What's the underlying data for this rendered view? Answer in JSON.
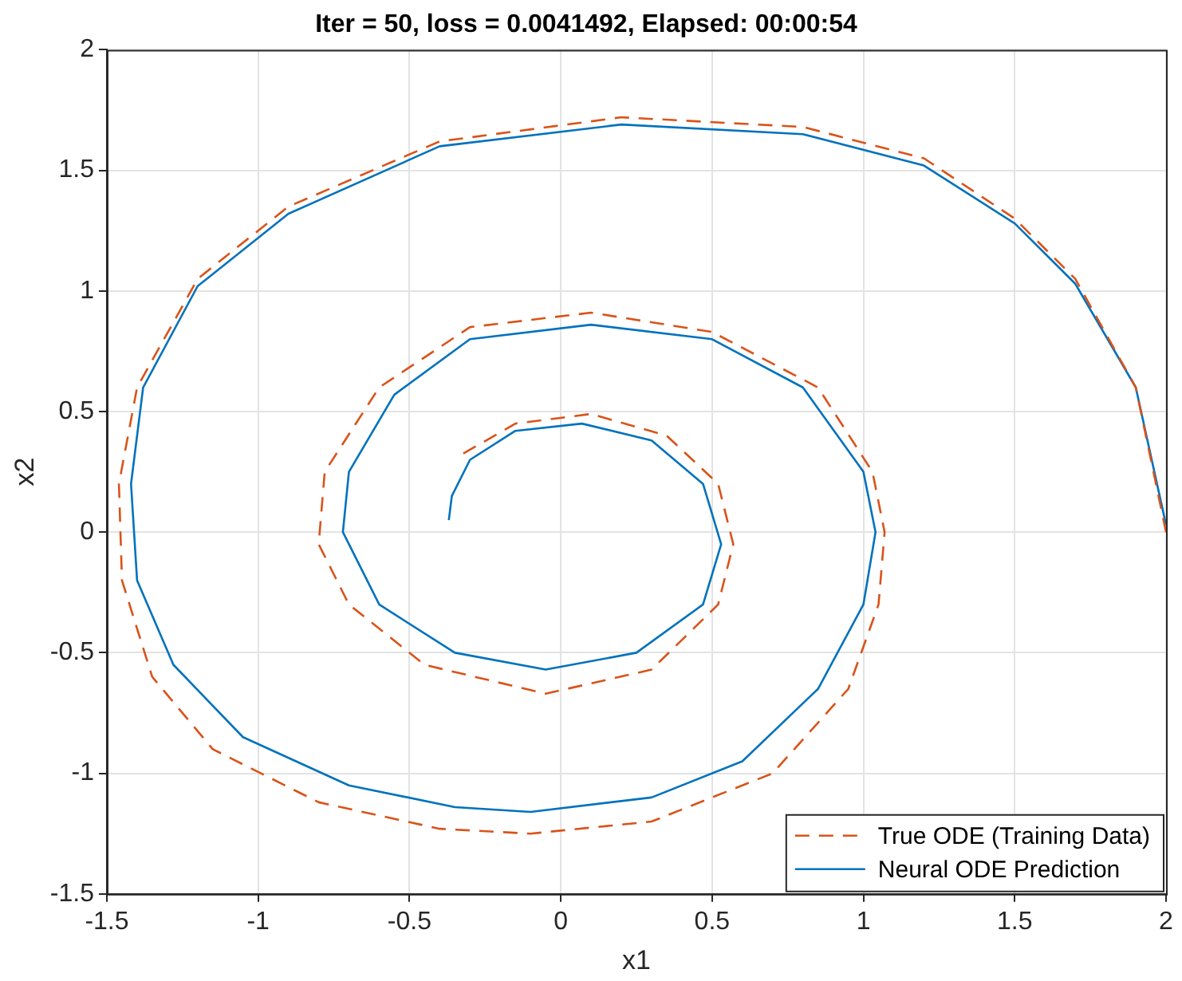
{
  "chart_data": {
    "type": "line",
    "title": "Iter = 50, loss = 0.0041492, Elapsed: 00:00:54",
    "xlabel": "x1",
    "ylabel": "x2",
    "xlim": [
      -1.5,
      2
    ],
    "xticks": [
      -1.5,
      -1,
      -0.5,
      0,
      0.5,
      1,
      1.5,
      2
    ],
    "ylim": [
      -1.5,
      2
    ],
    "yticks": [
      -1.5,
      -1,
      -0.5,
      0,
      0.5,
      1,
      1.5,
      2
    ],
    "grid": true,
    "legend": "bottom right",
    "marker": "none",
    "series": [
      {
        "name": "True ODE (Training Data)",
        "color": "#d95319",
        "line_style": "dashed",
        "x": [
          2,
          1.9,
          1.7,
          1.5,
          1.2,
          0.8,
          0.2,
          -0.4,
          -0.9,
          -1.2,
          -1.4,
          -1.46,
          -1.45,
          -1.35,
          -1.15,
          -0.8,
          -0.4,
          -0.1,
          0.3,
          0.7,
          0.95,
          1.05,
          1.07,
          1.03,
          0.85,
          0.5,
          0.1,
          -0.3,
          -0.6,
          -0.78,
          -0.8,
          -0.7,
          -0.45,
          -0.05,
          0.3,
          0.52,
          0.57,
          0.52,
          0.35,
          0.1,
          -0.15,
          -0.33
        ],
        "values": [
          0,
          0.6,
          1.05,
          1.3,
          1.55,
          1.68,
          1.72,
          1.62,
          1.35,
          1.05,
          0.6,
          0.2,
          -0.2,
          -0.6,
          -0.9,
          -1.12,
          -1.23,
          -1.25,
          -1.2,
          -1,
          -0.65,
          -0.3,
          0,
          0.25,
          0.6,
          0.83,
          0.91,
          0.85,
          0.6,
          0.25,
          -0.05,
          -0.3,
          -0.55,
          -0.67,
          -0.57,
          -0.3,
          -0.05,
          0.2,
          0.4,
          0.49,
          0.45,
          0.32
        ]
      },
      {
        "name": "Neural ODE Prediction",
        "color": "#0072bd",
        "line_style": "solid",
        "x": [
          2,
          1.9,
          1.7,
          1.5,
          1.2,
          0.8,
          0.2,
          -0.4,
          -0.9,
          -1.2,
          -1.38,
          -1.42,
          -1.4,
          -1.28,
          -1.05,
          -0.7,
          -0.35,
          -0.1,
          0.3,
          0.6,
          0.85,
          1,
          1.04,
          1,
          0.8,
          0.5,
          0.1,
          -0.3,
          -0.55,
          -0.7,
          -0.72,
          -0.6,
          -0.35,
          -0.05,
          0.25,
          0.47,
          0.53,
          0.47,
          0.3,
          0.07,
          -0.15,
          -0.3,
          -0.36,
          -0.37
        ],
        "values": [
          0.03,
          0.6,
          1.03,
          1.28,
          1.52,
          1.65,
          1.69,
          1.6,
          1.32,
          1.02,
          0.6,
          0.2,
          -0.2,
          -0.55,
          -0.85,
          -1.05,
          -1.14,
          -1.16,
          -1.1,
          -0.95,
          -0.65,
          -0.3,
          0,
          0.25,
          0.6,
          0.8,
          0.86,
          0.8,
          0.57,
          0.25,
          0,
          -0.3,
          -0.5,
          -0.57,
          -0.5,
          -0.3,
          -0.05,
          0.2,
          0.38,
          0.45,
          0.42,
          0.3,
          0.15,
          0.05
        ]
      }
    ]
  }
}
